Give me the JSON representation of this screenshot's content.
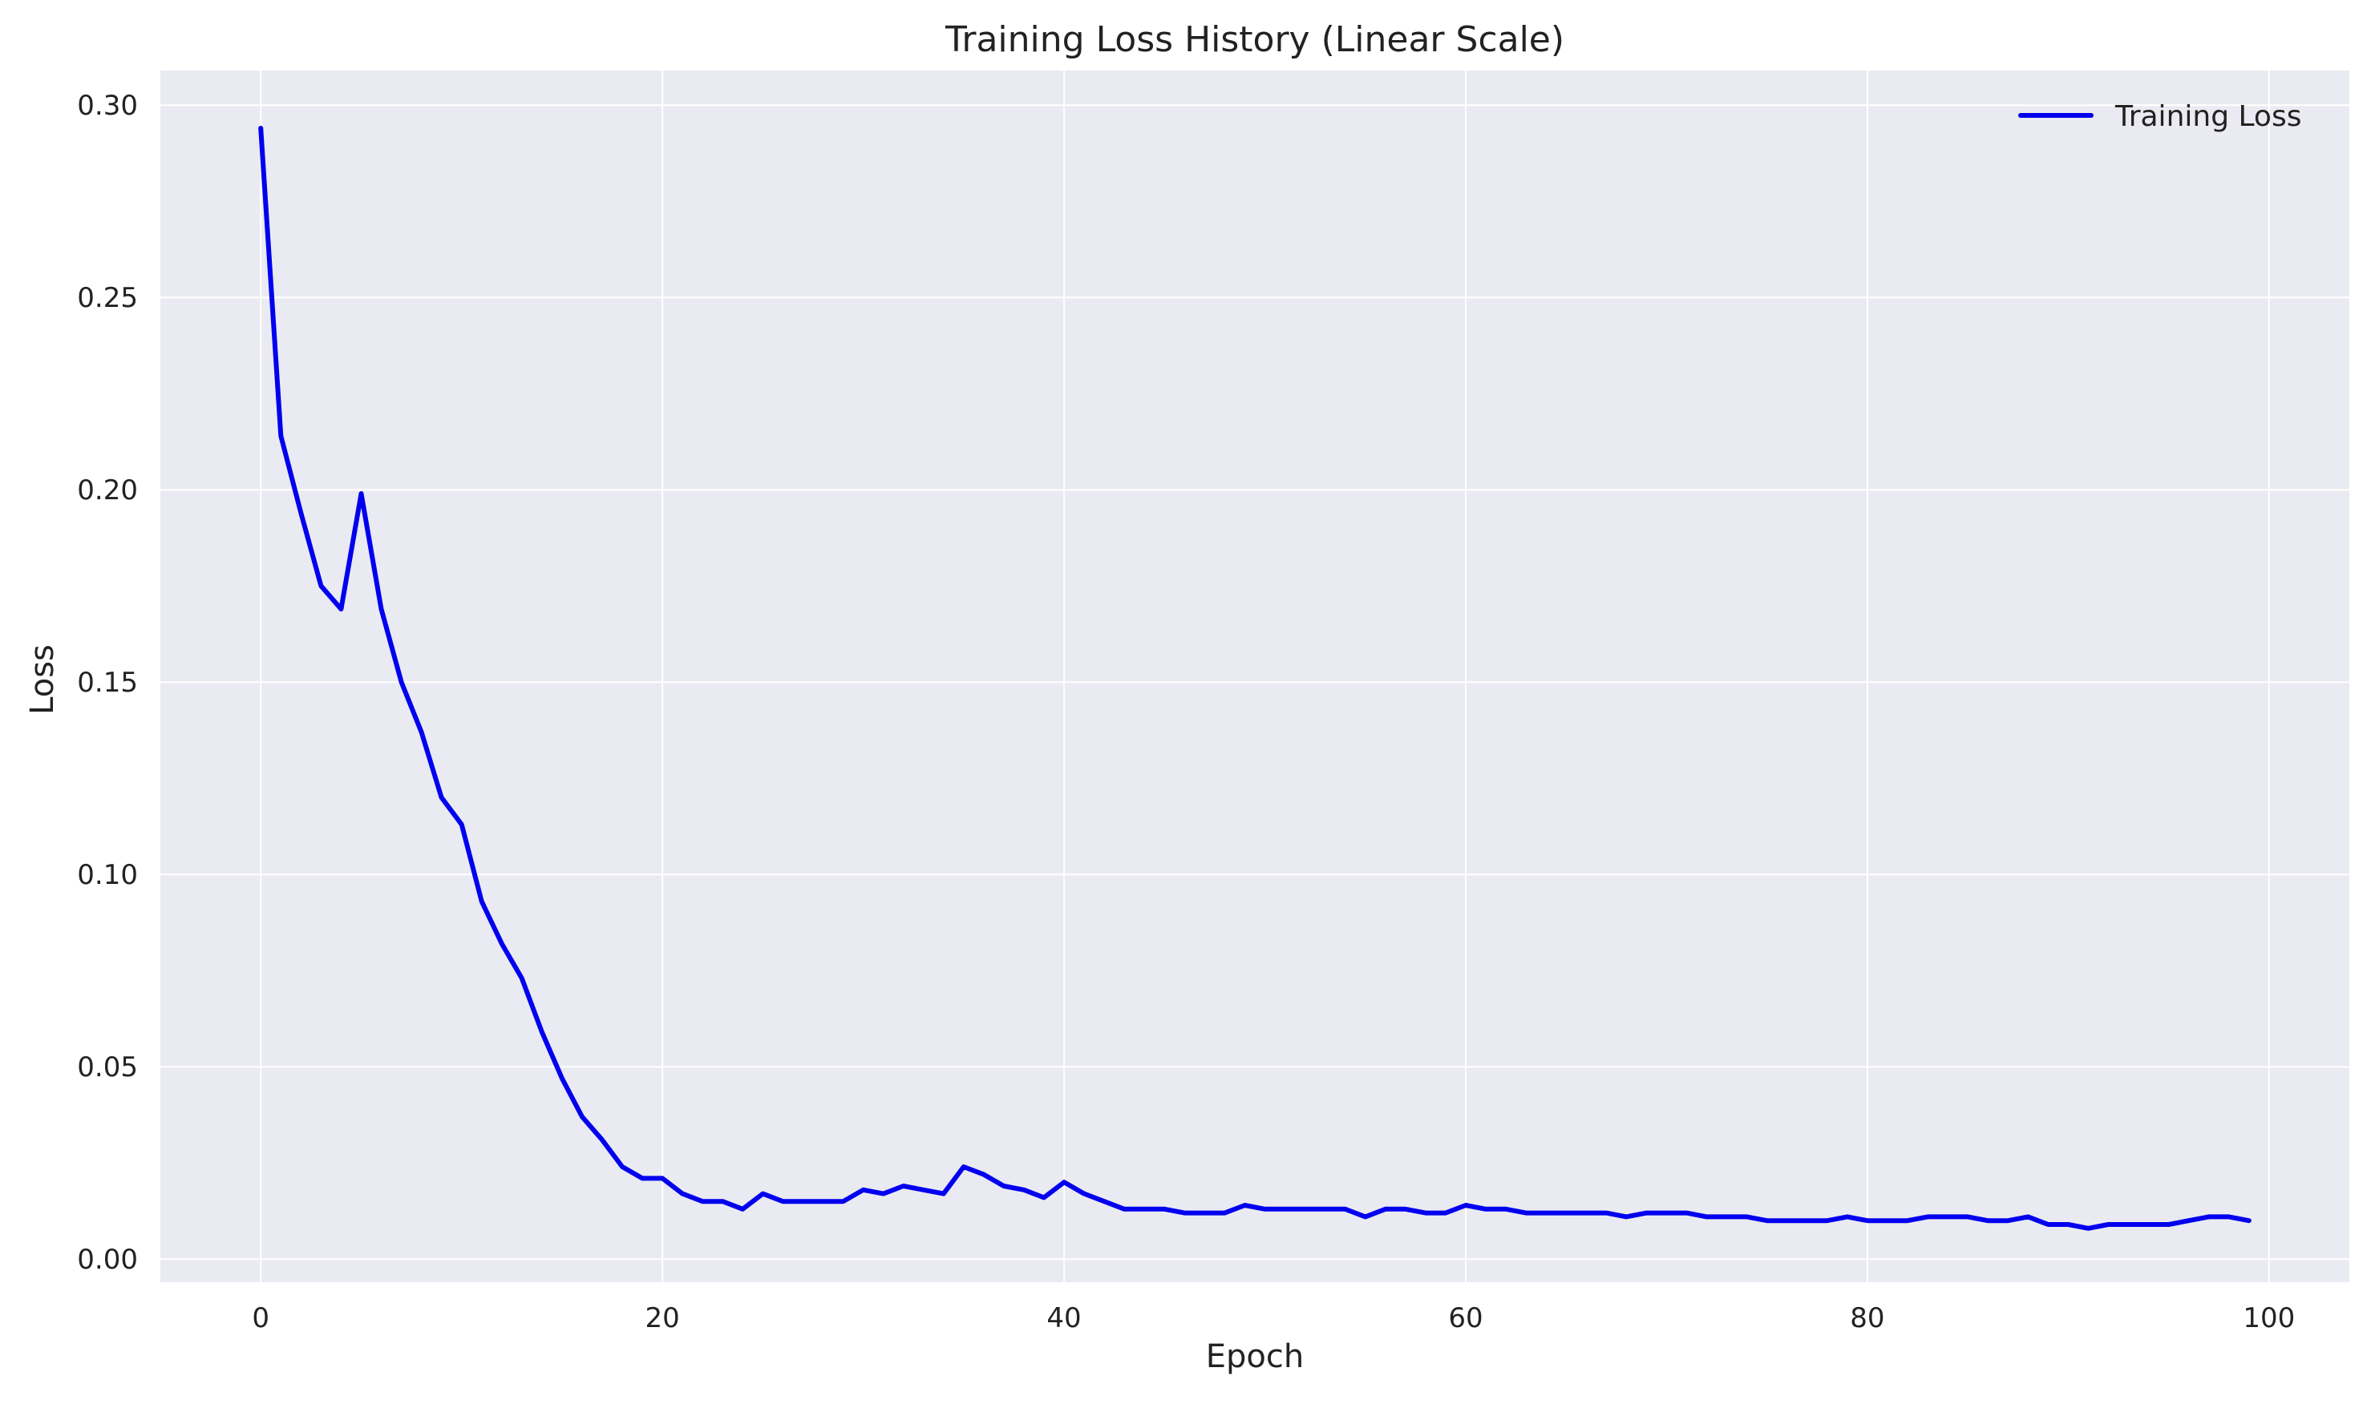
{
  "chart_data": {
    "type": "line",
    "title": "Training Loss History (Linear Scale)",
    "xlabel": "Epoch",
    "ylabel": "Loss",
    "xlim": [
      -5,
      104
    ],
    "ylim": [
      -0.006,
      0.309
    ],
    "xticks": [
      0,
      20,
      40,
      60,
      80,
      100
    ],
    "xtick_labels": [
      "0",
      "20",
      "40",
      "60",
      "80",
      "100"
    ],
    "yticks": [
      0.0,
      0.05,
      0.1,
      0.15,
      0.2,
      0.25,
      0.3
    ],
    "ytick_labels": [
      "0.00",
      "0.05",
      "0.10",
      "0.15",
      "0.20",
      "0.25",
      "0.30"
    ],
    "grid": true,
    "legend_position": "top-right",
    "background_color": "#eaeaf2",
    "grid_color": "#ffffff",
    "series": [
      {
        "name": "Training Loss",
        "color": "#0000ee",
        "x": [
          0,
          1,
          2,
          3,
          4,
          5,
          6,
          7,
          8,
          9,
          10,
          11,
          12,
          13,
          14,
          15,
          16,
          17,
          18,
          19,
          20,
          21,
          22,
          23,
          24,
          25,
          26,
          27,
          28,
          29,
          30,
          31,
          32,
          33,
          34,
          35,
          36,
          37,
          38,
          39,
          40,
          41,
          42,
          43,
          44,
          45,
          46,
          47,
          48,
          49,
          50,
          51,
          52,
          53,
          54,
          55,
          56,
          57,
          58,
          59,
          60,
          61,
          62,
          63,
          64,
          65,
          66,
          67,
          68,
          69,
          70,
          71,
          72,
          73,
          74,
          75,
          76,
          77,
          78,
          79,
          80,
          81,
          82,
          83,
          84,
          85,
          86,
          87,
          88,
          89,
          90,
          91,
          92,
          93,
          94,
          95,
          96,
          97,
          98,
          99
        ],
        "values": [
          0.294,
          0.214,
          0.194,
          0.175,
          0.169,
          0.199,
          0.169,
          0.15,
          0.137,
          0.12,
          0.113,
          0.093,
          0.082,
          0.073,
          0.059,
          0.047,
          0.037,
          0.031,
          0.024,
          0.021,
          0.021,
          0.017,
          0.015,
          0.015,
          0.013,
          0.017,
          0.015,
          0.015,
          0.015,
          0.015,
          0.018,
          0.017,
          0.019,
          0.018,
          0.017,
          0.024,
          0.022,
          0.019,
          0.018,
          0.016,
          0.02,
          0.017,
          0.015,
          0.013,
          0.013,
          0.013,
          0.012,
          0.012,
          0.012,
          0.014,
          0.013,
          0.013,
          0.013,
          0.013,
          0.013,
          0.011,
          0.013,
          0.013,
          0.012,
          0.012,
          0.014,
          0.013,
          0.013,
          0.012,
          0.012,
          0.012,
          0.012,
          0.012,
          0.011,
          0.012,
          0.012,
          0.012,
          0.011,
          0.011,
          0.011,
          0.01,
          0.01,
          0.01,
          0.01,
          0.011,
          0.01,
          0.01,
          0.01,
          0.011,
          0.011,
          0.011,
          0.01,
          0.01,
          0.011,
          0.009,
          0.009,
          0.008,
          0.009,
          0.009,
          0.009,
          0.009,
          0.01,
          0.011,
          0.011,
          0.01
        ]
      }
    ]
  }
}
